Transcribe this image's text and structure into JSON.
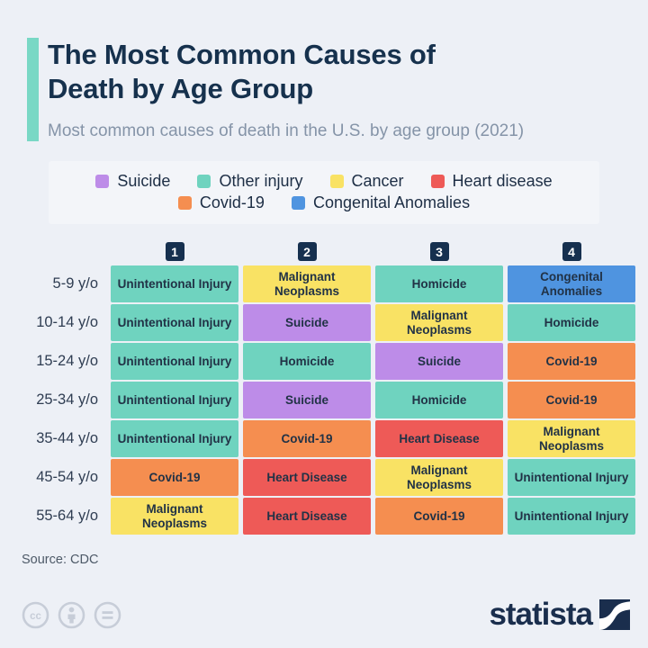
{
  "header": {
    "title_line1": "The Most Common Causes of",
    "title_line2": "Death by Age Group",
    "subtitle": "Most common causes of death in the U.S. by age group (2021)"
  },
  "legend": {
    "items": [
      {
        "label": "Suicide",
        "category": "suicide"
      },
      {
        "label": "Other injury",
        "category": "other_injury"
      },
      {
        "label": "Cancer",
        "category": "cancer"
      },
      {
        "label": "Heart disease",
        "category": "heart_disease"
      },
      {
        "label": "Covid-19",
        "category": "covid_19"
      },
      {
        "label": "Congenital Anomalies",
        "category": "congenital_anomalies"
      }
    ]
  },
  "chart_data": {
    "type": "table",
    "title": "The Most Common Causes of Death by Age Group",
    "subtitle": "Most common causes of death in the U.S. by age group (2021)",
    "rank_headers": [
      "1",
      "2",
      "3",
      "4"
    ],
    "category_colors": {
      "suicide": "#bd8ce8",
      "other_injury": "#6fd3bf",
      "cancer": "#f9e264",
      "heart_disease": "#ee5a57",
      "covid_19": "#f58e50",
      "congenital_anomalies": "#4f94e0"
    },
    "rows": [
      {
        "age_group": "5-9 y/o",
        "causes": [
          {
            "label": "Unintentional Injury",
            "category": "other_injury"
          },
          {
            "label": "Malignant Neoplasms",
            "category": "cancer"
          },
          {
            "label": "Homicide",
            "category": "other_injury"
          },
          {
            "label": "Congenital Anomalies",
            "category": "congenital_anomalies"
          }
        ]
      },
      {
        "age_group": "10-14 y/o",
        "causes": [
          {
            "label": "Unintentional Injury",
            "category": "other_injury"
          },
          {
            "label": "Suicide",
            "category": "suicide"
          },
          {
            "label": "Malignant Neoplasms",
            "category": "cancer"
          },
          {
            "label": "Homicide",
            "category": "other_injury"
          }
        ]
      },
      {
        "age_group": "15-24 y/o",
        "causes": [
          {
            "label": "Unintentional Injury",
            "category": "other_injury"
          },
          {
            "label": "Homicide",
            "category": "other_injury"
          },
          {
            "label": "Suicide",
            "category": "suicide"
          },
          {
            "label": "Covid-19",
            "category": "covid_19"
          }
        ]
      },
      {
        "age_group": "25-34 y/o",
        "causes": [
          {
            "label": "Unintentional Injury",
            "category": "other_injury"
          },
          {
            "label": "Suicide",
            "category": "suicide"
          },
          {
            "label": "Homicide",
            "category": "other_injury"
          },
          {
            "label": "Covid-19",
            "category": "covid_19"
          }
        ]
      },
      {
        "age_group": "35-44 y/o",
        "causes": [
          {
            "label": "Unintentional Injury",
            "category": "other_injury"
          },
          {
            "label": "Covid-19",
            "category": "covid_19"
          },
          {
            "label": "Heart Disease",
            "category": "heart_disease"
          },
          {
            "label": "Malignant Neoplasms",
            "category": "cancer"
          }
        ]
      },
      {
        "age_group": "45-54 y/o",
        "causes": [
          {
            "label": "Covid-19",
            "category": "covid_19"
          },
          {
            "label": "Heart Disease",
            "category": "heart_disease"
          },
          {
            "label": "Malignant Neoplasms",
            "category": "cancer"
          },
          {
            "label": "Unintentional Injury",
            "category": "other_injury"
          }
        ]
      },
      {
        "age_group": "55-64 y/o",
        "causes": [
          {
            "label": "Malignant Neoplasms",
            "category": "cancer"
          },
          {
            "label": "Heart Disease",
            "category": "heart_disease"
          },
          {
            "label": "Covid-19",
            "category": "covid_19"
          },
          {
            "label": "Unintentional Injury",
            "category": "other_injury"
          }
        ]
      }
    ]
  },
  "footer": {
    "source": "Source: CDC",
    "brand": "statista",
    "cc_icons": [
      "cc-icon",
      "attribution-person-icon",
      "equals-nd-icon"
    ]
  },
  "colors": {
    "background": "#edf0f6",
    "accent_bar": "#79d8c5",
    "title": "#16314d",
    "subtitle": "#8594a8",
    "rank_badge": "#16304f",
    "brand_navy": "#1a2e4d"
  }
}
